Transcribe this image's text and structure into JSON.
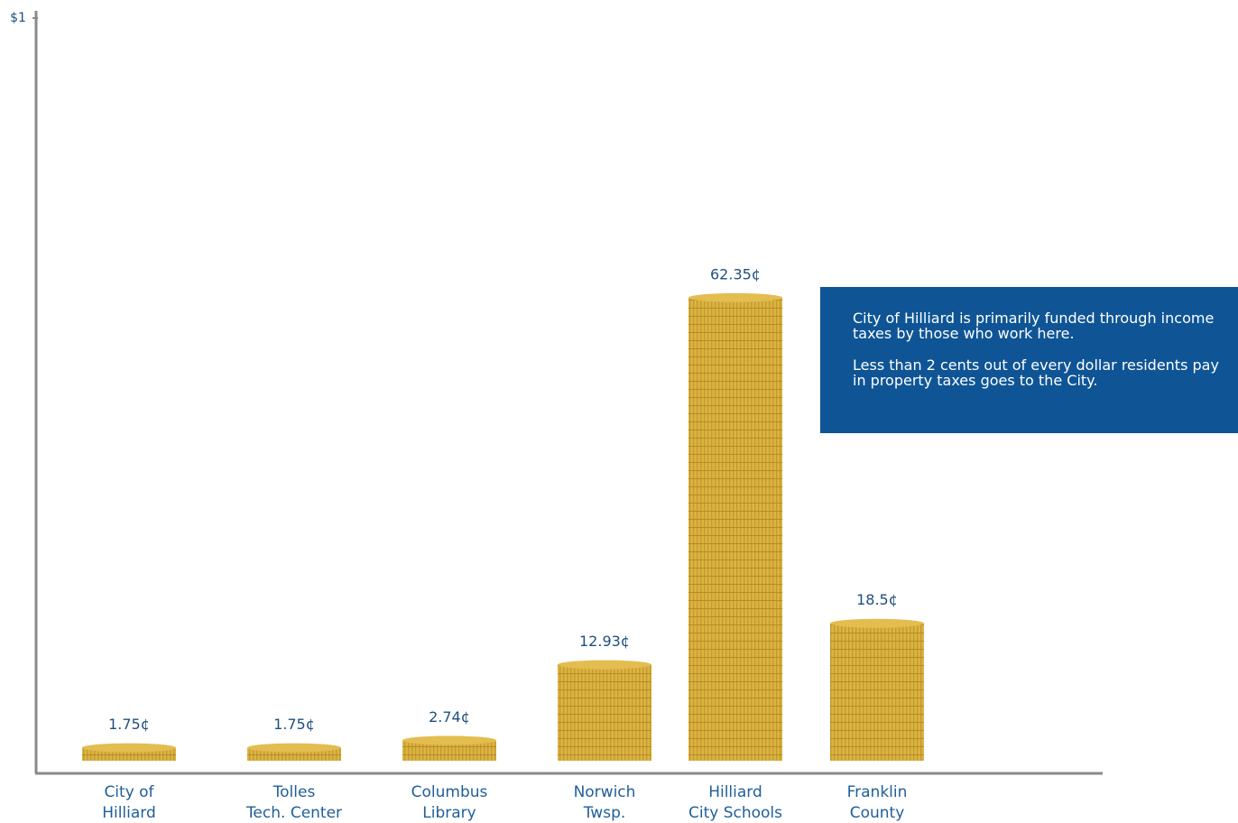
{
  "chart_data": {
    "type": "bar",
    "categories": [
      [
        "City of",
        "Hilliard"
      ],
      [
        "Tolles",
        "Tech. Center"
      ],
      [
        "Columbus",
        "Library"
      ],
      [
        "Norwich",
        "Twsp."
      ],
      [
        "Hilliard",
        "City Schools"
      ],
      [
        "Franklin",
        "County"
      ]
    ],
    "values": [
      1.75,
      1.75,
      2.74,
      12.93,
      62.35,
      18.5
    ],
    "value_labels": [
      "1.75¢",
      "1.75¢",
      "2.74¢",
      "12.93¢",
      "62.35¢",
      "18.5¢"
    ],
    "color": "#e3bd4f",
    "ylim": [
      0,
      100
    ],
    "yticks": [
      {
        "value": 100,
        "label": "$1"
      }
    ],
    "annotation": [
      "City of Hilliard is primarily funded through income taxes by those who work here.",
      "Less than 2 cents out of every dollar residents pay in property taxes goes to the City."
    ]
  }
}
